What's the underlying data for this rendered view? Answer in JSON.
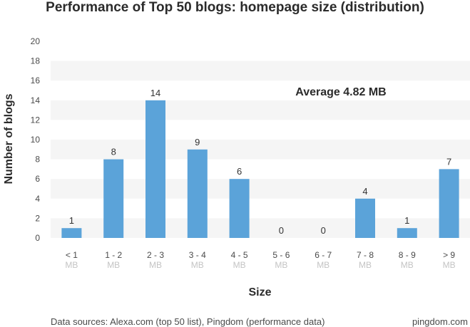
{
  "page": {
    "title": "Performance of Top 50 blogs: homepage size (distribution)",
    "sources": "Data sources: Alexa.com (top 50 list), Pingdom (performance data)",
    "brand": "pingdom.com"
  },
  "chart_data": {
    "type": "bar",
    "title": "Performance of Top 50 blogs: homepage size (distribution)",
    "xlabel": "Size",
    "ylabel": "Number of blogs",
    "categories": [
      "< 1",
      "1 - 2",
      "2 - 3",
      "3 - 4",
      "4 - 5",
      "5 - 6",
      "6 - 7",
      "7 - 8",
      "8 - 9",
      "> 9"
    ],
    "category_unit": "MB",
    "values": [
      1,
      8,
      14,
      9,
      6,
      0,
      0,
      4,
      1,
      7
    ],
    "ylim": [
      0,
      20
    ],
    "yticks": [
      0,
      2,
      4,
      6,
      8,
      10,
      12,
      14,
      16,
      18,
      20
    ],
    "annotation": "Average 4.82 MB",
    "grid": "alternating horizontal bands",
    "colors": {
      "bar": "#5ba3d9",
      "band": "#f5f5f5",
      "tick": "#4a4a4a",
      "unit": "#c4c4c4"
    }
  }
}
